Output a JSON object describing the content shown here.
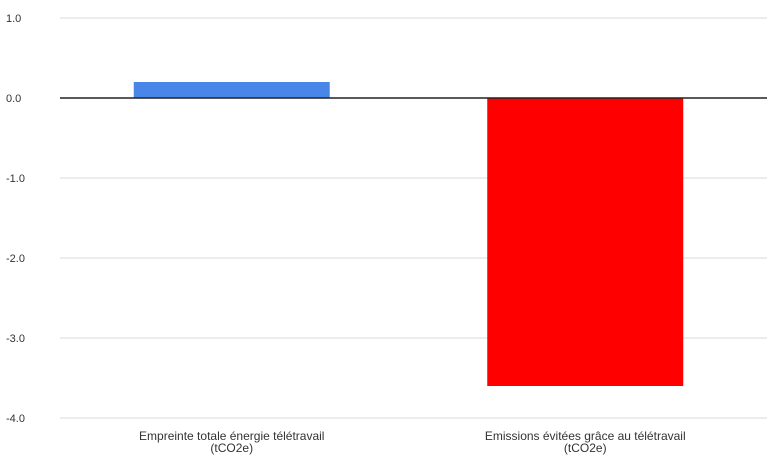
{
  "chart_data": {
    "type": "bar",
    "categories": [
      [
        "Empreinte totale énergie télétravail",
        "(tCO2e)"
      ],
      [
        "Emissions évitées grâce au télétravail",
        "(tCO2e)"
      ]
    ],
    "values": [
      0.2,
      -3.6
    ],
    "colors": [
      "#4a86e8",
      "#ff0000"
    ],
    "yticks": [
      "1.0",
      "0.0",
      "-1.0",
      "-2.0",
      "-3.0",
      "-4.0"
    ],
    "ylim": [
      -4.0,
      1.0
    ],
    "grid": true,
    "title": "",
    "xlabel": "",
    "ylabel": ""
  }
}
